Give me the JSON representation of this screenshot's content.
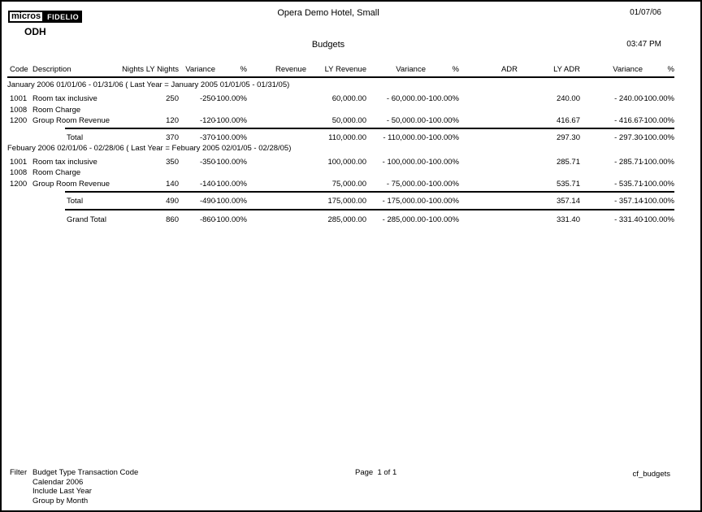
{
  "page": {
    "logo_micros": "micros",
    "logo_fidelio": "FIDELIO",
    "hotel_code": "ODH",
    "hotel_title": "Opera Demo Hotel, Small",
    "report_title": "Budgets",
    "date": "01/07/06",
    "time": "03:47 PM"
  },
  "table": {
    "columns": [
      "Code",
      "Description",
      "Nights",
      "LY Nights",
      "Variance",
      "%",
      "Revenue",
      "LY Revenue",
      "Variance",
      "%",
      "ADR",
      "LY ADR",
      "Variance",
      "%"
    ],
    "groups": [
      {
        "header": "January 2006 01/01/06 - 01/31/06 ( Last Year = January 2005 01/01/05 - 01/31/05)",
        "rows": [
          {
            "code": "1001",
            "description": "Room tax inclusive",
            "nights": "",
            "ly_nights": "250",
            "nights_variance": "-250",
            "nights_pct": "-100.00%",
            "revenue": "",
            "ly_revenue": "60,000.00",
            "rev_variance": "- 60,000.00",
            "rev_pct": "-100.00%",
            "adr": "",
            "ly_adr": "240.00",
            "adr_variance": "- 240.00",
            "adr_pct": "-100.00%"
          },
          {
            "code": "1008",
            "description": "Room Charge",
            "nights": "",
            "ly_nights": "",
            "nights_variance": "",
            "nights_pct": "",
            "revenue": "",
            "ly_revenue": "",
            "rev_variance": "",
            "rev_pct": "",
            "adr": "",
            "ly_adr": "",
            "adr_variance": "",
            "adr_pct": ""
          },
          {
            "code": "1200",
            "description": "Group Room Revenue",
            "nights": "",
            "ly_nights": "120",
            "nights_variance": "-120",
            "nights_pct": "-100.00%",
            "revenue": "",
            "ly_revenue": "50,000.00",
            "rev_variance": "- 50,000.00",
            "rev_pct": "-100.00%",
            "adr": "",
            "ly_adr": "416.67",
            "adr_variance": "- 416.67",
            "adr_pct": "-100.00%"
          }
        ],
        "total": {
          "code": "",
          "description": "Total",
          "nights": "",
          "ly_nights": "370",
          "nights_variance": "-370",
          "nights_pct": "-100.00%",
          "revenue": "",
          "ly_revenue": "110,000.00",
          "rev_variance": "- 110,000.00",
          "rev_pct": "-100.00%",
          "adr": "",
          "ly_adr": "297.30",
          "adr_variance": "- 297.30",
          "adr_pct": "-100.00%"
        }
      },
      {
        "header": "Febuary 2006 02/01/06 - 02/28/06 ( Last Year = Febuary 2005 02/01/05 - 02/28/05)",
        "rows": [
          {
            "code": "1001",
            "description": "Room tax inclusive",
            "nights": "",
            "ly_nights": "350",
            "nights_variance": "-350",
            "nights_pct": "-100.00%",
            "revenue": "",
            "ly_revenue": "100,000.00",
            "rev_variance": "- 100,000.00",
            "rev_pct": "-100.00%",
            "adr": "",
            "ly_adr": "285.71",
            "adr_variance": "- 285.71",
            "adr_pct": "-100.00%"
          },
          {
            "code": "1008",
            "description": "Room Charge",
            "nights": "",
            "ly_nights": "",
            "nights_variance": "",
            "nights_pct": "",
            "revenue": "",
            "ly_revenue": "",
            "rev_variance": "",
            "rev_pct": "",
            "adr": "",
            "ly_adr": "",
            "adr_variance": "",
            "adr_pct": ""
          },
          {
            "code": "1200",
            "description": "Group Room Revenue",
            "nights": "",
            "ly_nights": "140",
            "nights_variance": "-140",
            "nights_pct": "-100.00%",
            "revenue": "",
            "ly_revenue": "75,000.00",
            "rev_variance": "- 75,000.00",
            "rev_pct": "-100.00%",
            "adr": "",
            "ly_adr": "535.71",
            "adr_variance": "- 535.71",
            "adr_pct": "-100.00%"
          }
        ],
        "total": {
          "code": "",
          "description": "Total",
          "nights": "",
          "ly_nights": "490",
          "nights_variance": "-490",
          "nights_pct": "-100.00%",
          "revenue": "",
          "ly_revenue": "175,000.00",
          "rev_variance": "- 175,000.00",
          "rev_pct": "-100.00%",
          "adr": "",
          "ly_adr": "357.14",
          "adr_variance": "- 357.14",
          "adr_pct": "-100.00%"
        }
      }
    ],
    "grand_total": {
      "code": "",
      "description": "Grand Total",
      "nights": "",
      "ly_nights": "860",
      "nights_variance": "-860",
      "nights_pct": "-100.00%",
      "revenue": "",
      "ly_revenue": "285,000.00",
      "rev_variance": "- 285,000.00",
      "rev_pct": "-100.00%",
      "adr": "",
      "ly_adr": "331.40",
      "adr_variance": "- 331.40",
      "adr_pct": "-100.00%"
    }
  },
  "footer": {
    "filter_label": "Filter",
    "filter_lines": [
      "Budget Type Transaction Code",
      "Calendar 2006",
      "Include Last Year",
      "Group by Month"
    ],
    "page_info": "Page  1 of 1",
    "report_id": "cf_budgets"
  }
}
